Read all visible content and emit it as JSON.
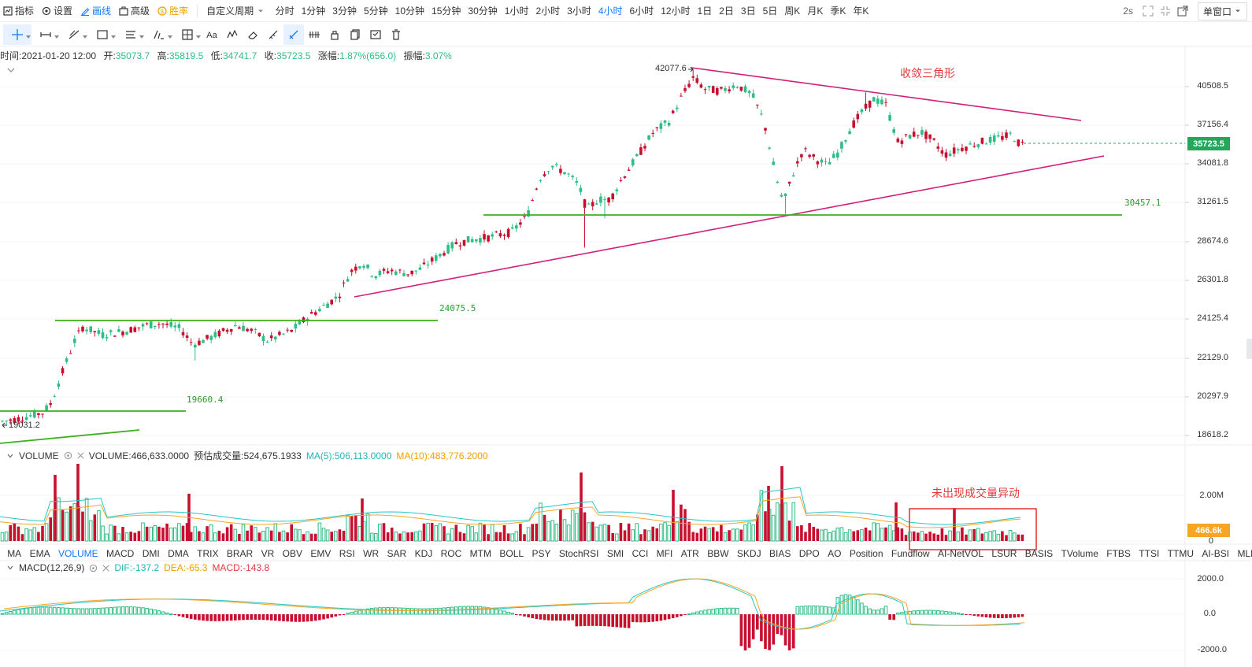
{
  "toolbar": {
    "left": [
      {
        "label": "指标",
        "icon": "indicator-icon"
      },
      {
        "label": "设置",
        "icon": "settings-icon"
      },
      {
        "label": "画线",
        "icon": "draw-line-icon",
        "active": true
      },
      {
        "label": "高级",
        "icon": "advanced-icon"
      },
      {
        "label": "胜率",
        "icon": "win-rate-icon",
        "accent": true
      }
    ],
    "custom_period": "自定义周期",
    "periods": [
      "分时",
      "1分钟",
      "3分钟",
      "5分钟",
      "10分钟",
      "15分钟",
      "30分钟",
      "1小时",
      "2小时",
      "3小时",
      "4小时",
      "6小时",
      "12小时",
      "1日",
      "2日",
      "3日",
      "5日",
      "周K",
      "月K",
      "季K",
      "年K"
    ],
    "active_period": "4小时",
    "refresh": "2s",
    "window_mode": "单窗口"
  },
  "draw_tools": [
    "crosshair-icon",
    "horizontal-segment-icon",
    "trend-line-icon",
    "rectangle-icon",
    "parallel-lines-icon",
    "fibonacci-icon",
    "measure-icon",
    "text-icon",
    "pattern-icon",
    "eraser-icon",
    "ruler-icon",
    "magnet-draw-icon",
    "lock-draw-icon",
    "visibility-icon",
    "copy-icon",
    "layers-icon",
    "delete-icon"
  ],
  "info": {
    "time_label": "时间:",
    "time": "2021-01-20 12:00",
    "open_label": "开:",
    "open": "35073.7",
    "high_label": "高:",
    "high": "35819.5",
    "low_label": "低:",
    "low": "34741.7",
    "close_label": "收:",
    "close": "35723.5",
    "change_label": "涨幅:",
    "change": "1.87%(656.0)",
    "amp_label": "振幅:",
    "amp": "3.07%"
  },
  "price_axis": [
    "40508.5",
    "37156.4",
    "34081.8",
    "31261.5",
    "28674.6",
    "26301.8",
    "24125.4",
    "22129.0",
    "20297.9",
    "18618.2"
  ],
  "current_price": "35723.5",
  "annotations": {
    "pattern": "收敛三角形",
    "volume_note": "未出现成交量异动",
    "peak_price": "42077.6",
    "low_price": "19031.2"
  },
  "levels": [
    "30457.1",
    "24075.5",
    "19660.4"
  ],
  "volume": {
    "name": "VOLUME",
    "value_label": "VOLUME:466,633.0000",
    "est_label": "预估成交量:524,675.1933",
    "ma5_label": "MA(5):506,113.0000",
    "ma10_label": "MA(10):483,776.2000",
    "axis": [
      "2.00M",
      "0"
    ],
    "current": "466.6k"
  },
  "indicator_tabs": [
    "MA",
    "EMA",
    "VOLUME",
    "MACD",
    "DMI",
    "DMA",
    "TRIX",
    "BRAR",
    "VR",
    "OBV",
    "EMV",
    "RSI",
    "WR",
    "SAR",
    "KDJ",
    "ROC",
    "MTM",
    "BOLL",
    "PSY",
    "StochRSI",
    "SMI",
    "CCI",
    "MFI",
    "ATR",
    "BBW",
    "SKDJ",
    "BIAS",
    "DPO",
    "AO",
    "Position",
    "Fundflow",
    "AI-NetVOL",
    "LSUR",
    "BASIS",
    "TVolume",
    "FTBS",
    "TTSI",
    "TTMU",
    "AI-BSI",
    "MLR"
  ],
  "active_indicator_tab": "VOLUME",
  "macd": {
    "name": "MACD(12,26,9)",
    "dif": "DIF:-137.2",
    "dea": "DEA:-65.3",
    "macd": "MACD:-143.8",
    "axis": [
      "2000.0",
      "0.0",
      "-2000.0"
    ]
  },
  "colors": {
    "up": "#2ebd85",
    "down": "#c8102e",
    "triangle": "#d0207a",
    "support": "#3cb01c",
    "accent": "#1677ff",
    "ma5": "#26c6c6",
    "ma10": "#f5a623"
  }
}
